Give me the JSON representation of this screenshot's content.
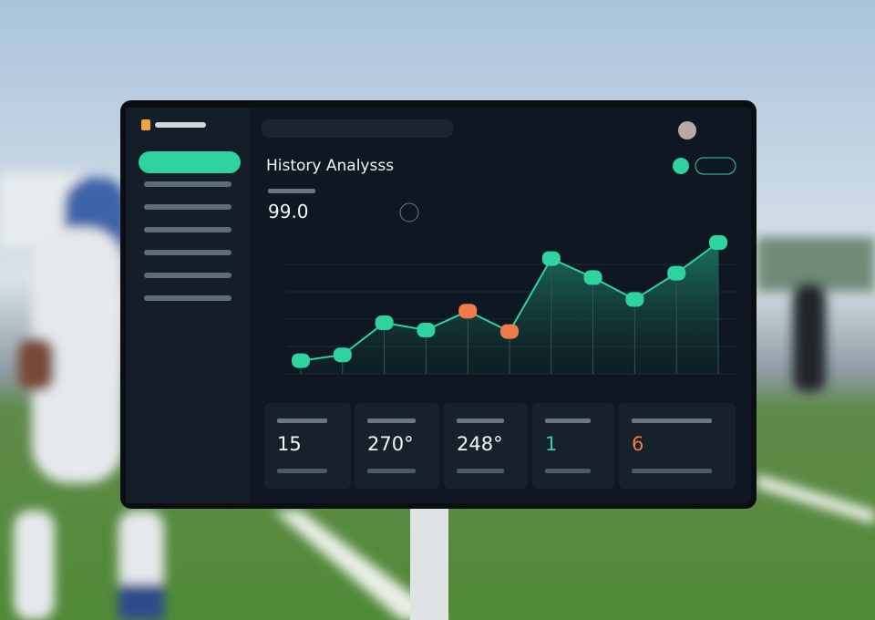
{
  "header": {
    "title": "History Analysss"
  },
  "summary": {
    "value": "99.0"
  },
  "chart_data": {
    "type": "line",
    "values": [
      9,
      13,
      35,
      30,
      43,
      29,
      79,
      66,
      51,
      69,
      90
    ],
    "color": "#2ed3a0",
    "point_colors": [
      "#2ed3a0",
      "#2ed3a0",
      "#2ed3a0",
      "#2ed3a0",
      "#f07a4a",
      "#f07a4a",
      "#2ed3a0",
      "#2ed3a0",
      "#2ed3a0",
      "#2ed3a0",
      "#2ed3a0"
    ],
    "ylim": [
      0,
      100
    ]
  },
  "cards": [
    {
      "value": "15"
    },
    {
      "value": "270°"
    },
    {
      "value": "248°"
    },
    {
      "value": "1"
    },
    {
      "value": "6"
    }
  ]
}
